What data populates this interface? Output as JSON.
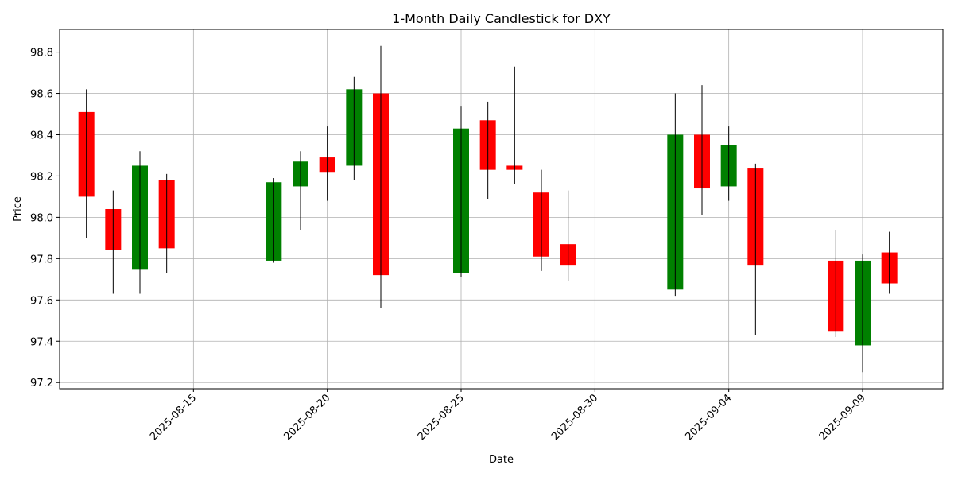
{
  "chart_data": {
    "type": "candlestick",
    "title": "1-Month Daily Candlestick for DXY",
    "xlabel": "Date",
    "ylabel": "Price",
    "grid": true,
    "ylim": [
      97.17,
      98.91
    ],
    "xlim": [
      "2025-08-10",
      "2025-09-12"
    ],
    "y_ticks": [
      97.2,
      97.4,
      97.6,
      97.8,
      98.0,
      98.2,
      98.4,
      98.6,
      98.8
    ],
    "x_ticks": [
      "2025-08-15",
      "2025-08-20",
      "2025-08-25",
      "2025-08-30",
      "2025-09-04",
      "2025-09-09"
    ],
    "colors": {
      "up": "#008000",
      "down": "#ff0000",
      "wick": "#000000",
      "grid": "#b0b0b0"
    },
    "candles": [
      {
        "date": "2025-08-11",
        "open": 98.51,
        "high": 98.62,
        "low": 97.9,
        "close": 98.1
      },
      {
        "date": "2025-08-12",
        "open": 98.04,
        "high": 98.13,
        "low": 97.63,
        "close": 97.84
      },
      {
        "date": "2025-08-13",
        "open": 97.75,
        "high": 98.32,
        "low": 97.63,
        "close": 98.25
      },
      {
        "date": "2025-08-14",
        "open": 98.18,
        "high": 98.21,
        "low": 97.73,
        "close": 97.85
      },
      {
        "date": "2025-08-18",
        "open": 97.79,
        "high": 98.19,
        "low": 97.78,
        "close": 98.17
      },
      {
        "date": "2025-08-19",
        "open": 98.15,
        "high": 98.32,
        "low": 97.94,
        "close": 98.27
      },
      {
        "date": "2025-08-20",
        "open": 98.29,
        "high": 98.44,
        "low": 98.08,
        "close": 98.22
      },
      {
        "date": "2025-08-21",
        "open": 98.25,
        "high": 98.68,
        "low": 98.18,
        "close": 98.62
      },
      {
        "date": "2025-08-22",
        "open": 98.6,
        "high": 98.83,
        "low": 97.56,
        "close": 97.72
      },
      {
        "date": "2025-08-25",
        "open": 97.73,
        "high": 98.54,
        "low": 97.71,
        "close": 98.43
      },
      {
        "date": "2025-08-26",
        "open": 98.47,
        "high": 98.56,
        "low": 98.09,
        "close": 98.23
      },
      {
        "date": "2025-08-27",
        "open": 98.25,
        "high": 98.73,
        "low": 98.16,
        "close": 98.23
      },
      {
        "date": "2025-08-28",
        "open": 98.12,
        "high": 98.23,
        "low": 97.74,
        "close": 97.81
      },
      {
        "date": "2025-08-29",
        "open": 97.87,
        "high": 98.13,
        "low": 97.69,
        "close": 97.77
      },
      {
        "date": "2025-09-02",
        "open": 97.65,
        "high": 98.6,
        "low": 97.62,
        "close": 98.4
      },
      {
        "date": "2025-09-03",
        "open": 98.4,
        "high": 98.64,
        "low": 98.01,
        "close": 98.14
      },
      {
        "date": "2025-09-04",
        "open": 98.15,
        "high": 98.44,
        "low": 98.08,
        "close": 98.35
      },
      {
        "date": "2025-09-05",
        "open": 98.24,
        "high": 98.26,
        "low": 97.43,
        "close": 97.77
      },
      {
        "date": "2025-09-08",
        "open": 97.79,
        "high": 97.94,
        "low": 97.42,
        "close": 97.45
      },
      {
        "date": "2025-09-09",
        "open": 97.38,
        "high": 97.82,
        "low": 97.25,
        "close": 97.79
      },
      {
        "date": "2025-09-10",
        "open": 97.83,
        "high": 97.93,
        "low": 97.63,
        "close": 97.68
      }
    ]
  }
}
